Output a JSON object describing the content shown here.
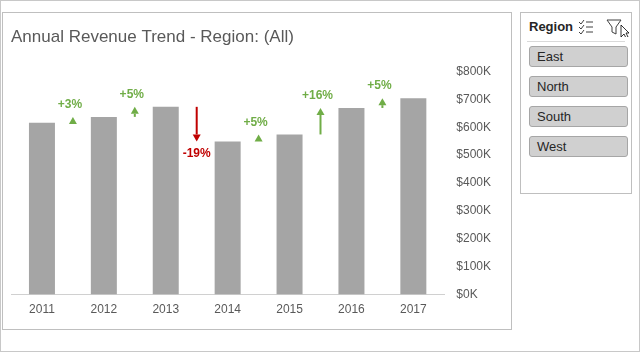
{
  "chart_data": {
    "type": "bar",
    "title": "Annual Revenue Trend - Region: (All)",
    "categories": [
      "2011",
      "2012",
      "2013",
      "2014",
      "2015",
      "2016",
      "2017"
    ],
    "values": [
      616000,
      637000,
      673000,
      549000,
      574000,
      669000,
      704000
    ],
    "color": "#a5a5a5",
    "ylim": [
      0,
      800000
    ],
    "yticks": [
      {
        "value": 0,
        "label": "$0K"
      },
      {
        "value": 100000,
        "label": "$100K"
      },
      {
        "value": 200000,
        "label": "$200K"
      },
      {
        "value": 300000,
        "label": "$300K"
      },
      {
        "value": 400000,
        "label": "$400K"
      },
      {
        "value": 500000,
        "label": "$500K"
      },
      {
        "value": 600000,
        "label": "$600K"
      },
      {
        "value": 700000,
        "label": "$700K"
      },
      {
        "value": 800000,
        "label": "$800K"
      }
    ],
    "grid": false,
    "annotations": [
      {
        "between": [
          "2011",
          "2012"
        ],
        "value": 3,
        "label": "+3%"
      },
      {
        "between": [
          "2012",
          "2013"
        ],
        "value": 5,
        "label": "+5%"
      },
      {
        "between": [
          "2013",
          "2014"
        ],
        "value": -19,
        "label": "-19%"
      },
      {
        "between": [
          "2014",
          "2015"
        ],
        "value": 5,
        "label": "+5%"
      },
      {
        "between": [
          "2015",
          "2016"
        ],
        "value": 16,
        "label": "+16%"
      },
      {
        "between": [
          "2016",
          "2017"
        ],
        "value": 5,
        "label": "+5%"
      }
    ]
  },
  "slicer": {
    "title": "Region",
    "items": [
      "East",
      "North",
      "South",
      "West"
    ]
  }
}
